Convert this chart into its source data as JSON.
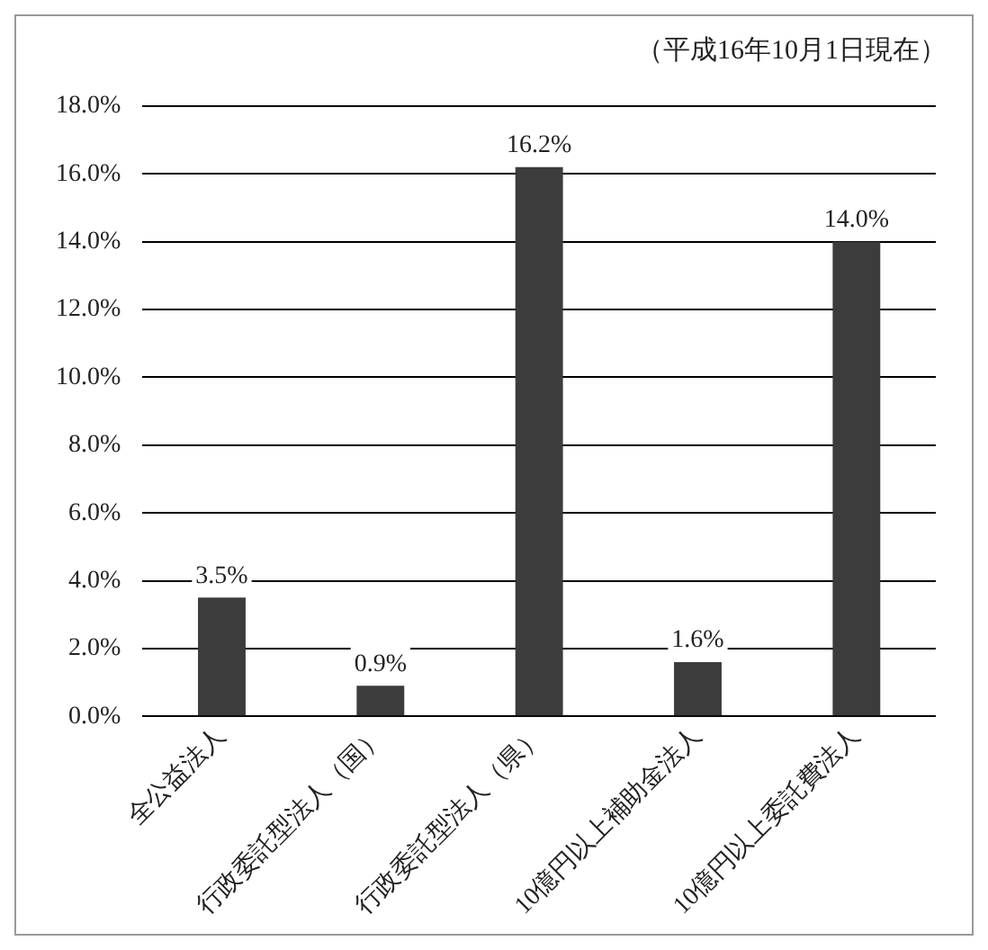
{
  "chart_data": {
    "type": "bar",
    "annotations": [
      "（平成16年10月1日現在）"
    ],
    "categories": [
      "全公益法人",
      "行政委託型法人（国）",
      "行政委託型法人（県）",
      "10億円以上補助金法人",
      "10億円以上委託費法人"
    ],
    "values": [
      3.5,
      0.9,
      16.2,
      1.6,
      14.0
    ],
    "value_labels": [
      "3.5%",
      "0.9%",
      "16.2%",
      "1.6%",
      "14.0%"
    ],
    "color": "#3c3c3c",
    "ylim": [
      0,
      18
    ],
    "yticks": [
      {
        "value": 0,
        "label": "0.0%"
      },
      {
        "value": 2,
        "label": "2.0%"
      },
      {
        "value": 4,
        "label": "4.0%"
      },
      {
        "value": 6,
        "label": "6.0%"
      },
      {
        "value": 8,
        "label": "8.0%"
      },
      {
        "value": 10,
        "label": "10.0%"
      },
      {
        "value": 12,
        "label": "12.0%"
      },
      {
        "value": 14,
        "label": "14.0%"
      },
      {
        "value": 16,
        "label": "16.0%"
      },
      {
        "value": 18,
        "label": "18.0%"
      }
    ],
    "grid": "y",
    "legend": false
  }
}
